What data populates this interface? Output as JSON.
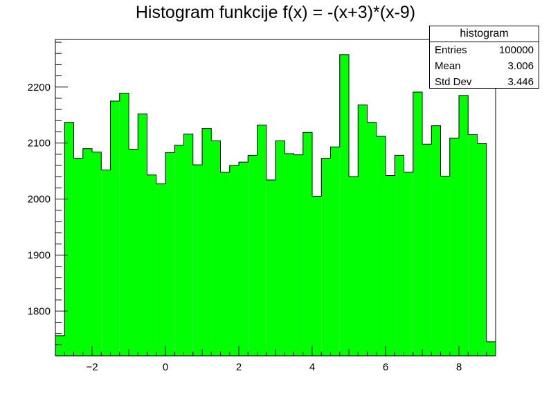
{
  "chart_data": {
    "type": "bar",
    "title": "Histogram funkcije f(x) = -(x+3)*(x-9)",
    "xlim": [
      -3,
      9
    ],
    "ylim": [
      1720,
      2285
    ],
    "x_ticks": [
      -2,
      0,
      2,
      4,
      6,
      8
    ],
    "y_ticks": [
      1800,
      1900,
      2000,
      2100,
      2200
    ],
    "bin_edges": {
      "start": -3,
      "width": 0.25,
      "count": 48
    },
    "values": [
      1756,
      2137,
      2073,
      2090,
      2084,
      2052,
      2175,
      2189,
      2089,
      2152,
      2043,
      2027,
      2083,
      2096,
      2116,
      2061,
      2126,
      2104,
      2048,
      2060,
      2066,
      2078,
      2132,
      2034,
      2104,
      2081,
      2079,
      2119,
      2005,
      2073,
      2093,
      2258,
      2040,
      2168,
      2137,
      2112,
      2042,
      2078,
      2048,
      2191,
      2098,
      2131,
      2041,
      2109,
      2185,
      2115,
      2099,
      1745
    ],
    "fill_color": "#00ff00",
    "line_color": "#000000",
    "grid": false,
    "legend": "top-right"
  },
  "stats": {
    "title": "histogram",
    "rows": [
      {
        "label": "Entries",
        "value": "100000"
      },
      {
        "label": "Mean",
        "value": "3.006"
      },
      {
        "label": "Std Dev",
        "value": "3.446"
      }
    ]
  }
}
